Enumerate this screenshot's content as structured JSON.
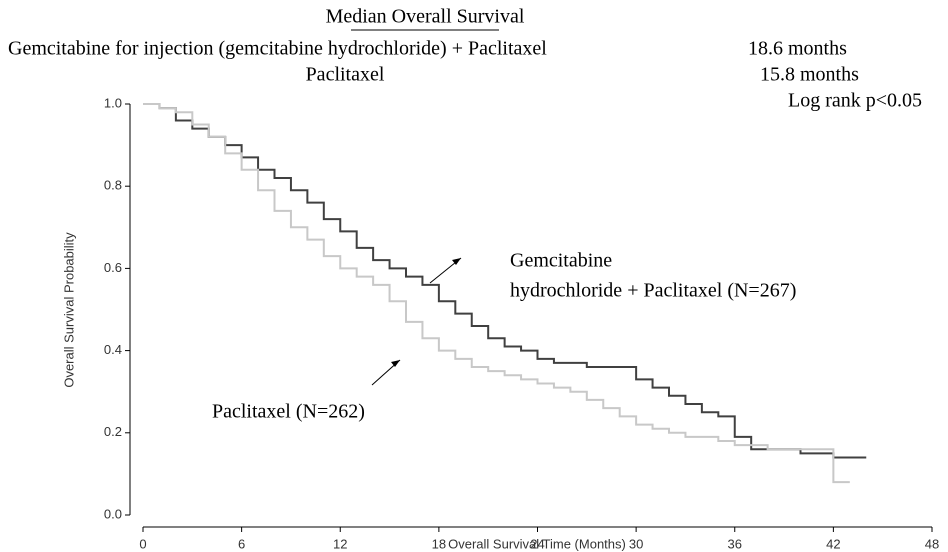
{
  "header": {
    "title": "Median Overall Survival",
    "rows": [
      [
        "Gemcitabine for injection (gemcitabine hydrochloride) + Paclitaxel",
        "18.6 months"
      ],
      [
        "Paclitaxel",
        "15.8 months"
      ]
    ],
    "note": "Log rank p<0.05"
  },
  "chart_data": {
    "type": "line",
    "step": true,
    "x_label": "Overall Survival Time (Months)",
    "y_label": "Overall Survival Probability",
    "xlim": [
      0,
      48
    ],
    "xticks": [
      0,
      6,
      12,
      18,
      24,
      30,
      36,
      42,
      48
    ],
    "ylim": [
      0,
      1
    ],
    "yticks": [
      {
        "value": 0,
        "label": "0.0"
      },
      0.2,
      0.4,
      0.6,
      0.8,
      {
        "value": 1,
        "label": "1.0"
      }
    ],
    "series": [
      {
        "label_lines": [
          "Gemcitabine",
          "hydrochloride + Paclitaxel (N=267)"
        ],
        "color": "#404040",
        "x": [
          0,
          1,
          2,
          3,
          4,
          5,
          6,
          7,
          8,
          9,
          10,
          11,
          12,
          13,
          14,
          15,
          16,
          17,
          18,
          19,
          20,
          21,
          22,
          23,
          24,
          25,
          26,
          27,
          28,
          29,
          30,
          31,
          32,
          33,
          34,
          35,
          36,
          37,
          38,
          39,
          40,
          41,
          42,
          44
        ],
        "values": [
          1.0,
          0.99,
          0.96,
          0.94,
          0.92,
          0.9,
          0.87,
          0.84,
          0.82,
          0.79,
          0.76,
          0.72,
          0.69,
          0.65,
          0.62,
          0.6,
          0.58,
          0.56,
          0.52,
          0.49,
          0.46,
          0.43,
          0.41,
          0.4,
          0.38,
          0.37,
          0.37,
          0.36,
          0.36,
          0.36,
          0.33,
          0.31,
          0.29,
          0.27,
          0.25,
          0.24,
          0.19,
          0.16,
          0.16,
          0.16,
          0.15,
          0.15,
          0.14,
          0.14
        ]
      },
      {
        "label_lines": [
          "Paclitaxel (N=262)"
        ],
        "color": "#c8c8c8",
        "x": [
          0,
          1,
          2,
          3,
          4,
          5,
          6,
          7,
          8,
          9,
          10,
          11,
          12,
          13,
          14,
          15,
          16,
          17,
          18,
          19,
          20,
          21,
          22,
          23,
          24,
          25,
          26,
          27,
          28,
          29,
          30,
          31,
          32,
          33,
          34,
          35,
          36,
          37,
          38,
          39,
          40,
          41,
          42,
          43
        ],
        "values": [
          1.0,
          0.99,
          0.98,
          0.95,
          0.92,
          0.88,
          0.84,
          0.79,
          0.74,
          0.7,
          0.67,
          0.63,
          0.6,
          0.58,
          0.56,
          0.52,
          0.47,
          0.43,
          0.4,
          0.38,
          0.36,
          0.35,
          0.34,
          0.33,
          0.32,
          0.31,
          0.3,
          0.28,
          0.26,
          0.24,
          0.22,
          0.21,
          0.2,
          0.19,
          0.19,
          0.18,
          0.17,
          0.17,
          0.16,
          0.16,
          0.16,
          0.16,
          0.08,
          0.08
        ]
      }
    ]
  }
}
